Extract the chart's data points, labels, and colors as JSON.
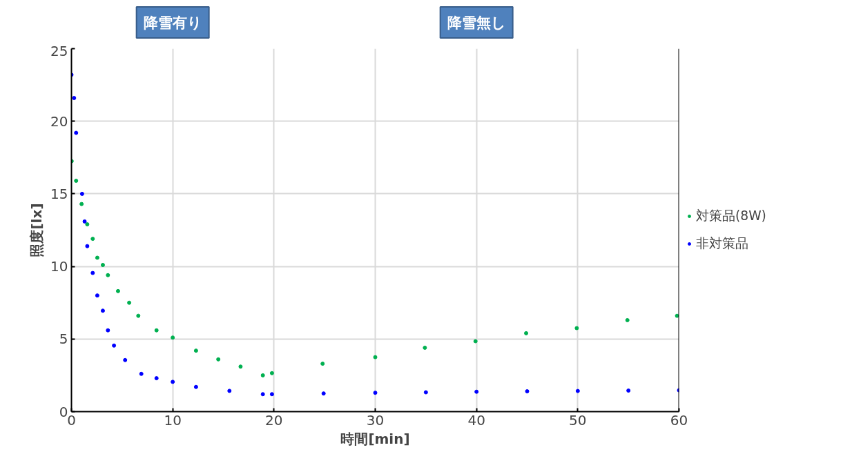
{
  "chart_data": {
    "type": "scatter",
    "xlabel": "時間[min]",
    "ylabel": "照度[lx]",
    "xlim": [
      0,
      60
    ],
    "ylim": [
      0,
      25
    ],
    "xticks": [
      0,
      10,
      20,
      30,
      40,
      50,
      60
    ],
    "yticks": [
      0,
      5,
      10,
      15,
      20,
      25
    ],
    "grid": true,
    "legend": "right",
    "marker": "circle",
    "annotations": [
      "降雪有り",
      "降雪無し"
    ],
    "series": [
      {
        "name": "対策品(8W)",
        "color": "#00b050",
        "x": [
          0.02,
          0.46,
          1.0,
          1.56,
          2.1,
          2.55,
          3.1,
          3.6,
          4.6,
          5.7,
          6.6,
          8.4,
          10.0,
          12.3,
          14.5,
          16.7,
          18.9,
          19.8,
          24.8,
          30,
          34.9,
          39.9,
          44.9,
          49.9,
          54.9,
          59.8
        ],
        "values": [
          17.25,
          15.9,
          14.3,
          12.9,
          11.9,
          10.6,
          10.1,
          9.4,
          8.3,
          7.5,
          6.6,
          5.6,
          5.1,
          4.2,
          3.6,
          3.1,
          2.5,
          2.65,
          3.3,
          3.75,
          4.4,
          4.85,
          5.4,
          5.75,
          6.3,
          6.6
        ]
      },
      {
        "name": "非対策品",
        "color": "#0000ff",
        "x": [
          0,
          0.26,
          0.46,
          1.05,
          1.3,
          1.56,
          2.1,
          2.55,
          3.1,
          3.6,
          4.2,
          5.3,
          6.9,
          8.4,
          10,
          12.3,
          15.6,
          18.9,
          19.8,
          24.9,
          30,
          35,
          40,
          45,
          50,
          55,
          60
        ],
        "values": [
          23.2,
          21.6,
          19.2,
          15.0,
          13.1,
          11.4,
          9.55,
          8.0,
          6.95,
          5.6,
          4.55,
          3.55,
          2.6,
          2.3,
          2.05,
          1.7,
          1.43,
          1.2,
          1.2,
          1.25,
          1.3,
          1.33,
          1.37,
          1.4,
          1.42,
          1.45,
          1.47
        ]
      }
    ]
  }
}
